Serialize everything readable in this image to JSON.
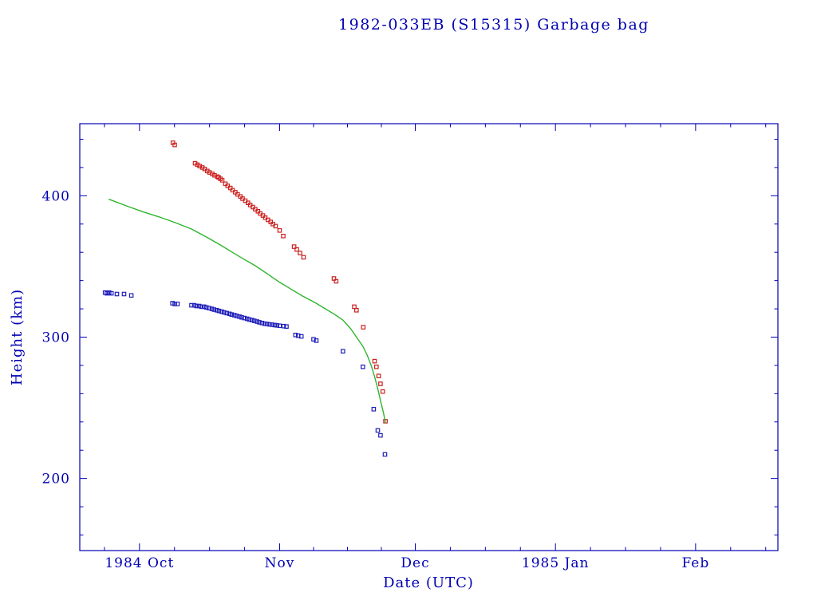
{
  "chart": {
    "text_color": "#0000b3",
    "frame_color": "#0000b3",
    "background": "#ffffff"
  },
  "chart_data": {
    "type": "scatter",
    "title": "1982-033EB (S15315) Garbage bag",
    "xlabel": "Date (UTC)",
    "ylabel": "Height (km)",
    "x_unit": "days since 1984-10-01",
    "xlim": [
      -13.2,
      141.2
    ],
    "ylim": [
      149,
      451
    ],
    "grid": false,
    "legend": "none",
    "x_ticks": [
      {
        "pos": 0,
        "label": "1984 Oct"
      },
      {
        "pos": 31,
        "label": "Nov"
      },
      {
        "pos": 61,
        "label": "Dec"
      },
      {
        "pos": 92,
        "label": "1985 Jan"
      },
      {
        "pos": 123,
        "label": "Feb"
      }
    ],
    "y_ticks": [
      {
        "pos": 200,
        "label": "200"
      },
      {
        "pos": 300,
        "label": "300"
      },
      {
        "pos": 400,
        "label": "400"
      }
    ],
    "y_minor_step": 20,
    "x_minor_divisions": 4,
    "series": [
      {
        "name": "red-squares",
        "type": "scatter",
        "marker": "open-square",
        "color": "#cc2020",
        "points": [
          [
            7.4,
            437.5
          ],
          [
            7.8,
            436
          ],
          [
            12.3,
            423
          ],
          [
            12.8,
            422
          ],
          [
            13.3,
            421
          ],
          [
            13.9,
            420
          ],
          [
            14.4,
            419
          ],
          [
            15.0,
            417.5
          ],
          [
            15.5,
            416.5
          ],
          [
            16.1,
            415.5
          ],
          [
            16.6,
            414.5
          ],
          [
            17.2,
            413.5
          ],
          [
            17.5,
            413
          ],
          [
            17.9,
            412
          ],
          [
            18.3,
            411
          ],
          [
            19.0,
            408.5
          ],
          [
            19.5,
            407
          ],
          [
            20.1,
            405.5
          ],
          [
            20.6,
            404
          ],
          [
            21.2,
            402.5
          ],
          [
            21.7,
            401
          ],
          [
            22.3,
            399.5
          ],
          [
            22.8,
            398
          ],
          [
            23.4,
            396.5
          ],
          [
            24.0,
            395
          ],
          [
            24.5,
            393.5
          ],
          [
            25.1,
            392
          ],
          [
            25.6,
            390.5
          ],
          [
            26.2,
            389
          ],
          [
            26.7,
            387.5
          ],
          [
            27.3,
            386
          ],
          [
            27.8,
            384.5
          ],
          [
            28.4,
            383
          ],
          [
            29.0,
            381.5
          ],
          [
            29.5,
            380
          ],
          [
            30.1,
            378.5
          ],
          [
            31.0,
            375.5
          ],
          [
            31.8,
            371.5
          ],
          [
            34.2,
            364
          ],
          [
            34.8,
            362
          ],
          [
            35.5,
            359.5
          ],
          [
            36.3,
            356.5
          ],
          [
            43.0,
            341.5
          ],
          [
            43.5,
            339.5
          ],
          [
            47.5,
            321.5
          ],
          [
            48.0,
            319
          ],
          [
            49.5,
            307
          ],
          [
            52.0,
            283
          ],
          [
            52.4,
            279
          ],
          [
            52.9,
            272.5
          ],
          [
            53.3,
            267
          ],
          [
            53.8,
            261.5
          ],
          [
            54.4,
            240.5
          ]
        ]
      },
      {
        "name": "blue-squares",
        "type": "scatter",
        "marker": "open-square",
        "color": "#2020bb",
        "points": [
          [
            -7.6,
            331.5
          ],
          [
            -7.2,
            331
          ],
          [
            -6.7,
            331.5
          ],
          [
            -6.2,
            331
          ],
          [
            -5.0,
            330.5
          ],
          [
            -3.4,
            330.5
          ],
          [
            -1.8,
            329.5
          ],
          [
            7.3,
            324
          ],
          [
            7.8,
            323.5
          ],
          [
            8.4,
            323.5
          ],
          [
            11.5,
            322.5
          ],
          [
            12.1,
            322.5
          ],
          [
            12.6,
            322
          ],
          [
            13.2,
            322
          ],
          [
            13.7,
            321.5
          ],
          [
            14.3,
            321.5
          ],
          [
            14.8,
            321
          ],
          [
            15.4,
            320.5
          ],
          [
            16.0,
            320
          ],
          [
            16.5,
            319.5
          ],
          [
            17.1,
            319
          ],
          [
            17.6,
            318.5
          ],
          [
            18.2,
            318
          ],
          [
            18.7,
            317.5
          ],
          [
            19.3,
            317
          ],
          [
            19.9,
            316.5
          ],
          [
            20.4,
            316
          ],
          [
            21.0,
            315.5
          ],
          [
            21.5,
            315
          ],
          [
            22.1,
            314.5
          ],
          [
            22.6,
            314
          ],
          [
            23.2,
            313.5
          ],
          [
            23.8,
            313
          ],
          [
            24.3,
            312.5
          ],
          [
            24.9,
            312
          ],
          [
            25.4,
            311.5
          ],
          [
            26.0,
            311
          ],
          [
            26.5,
            310.5
          ],
          [
            27.1,
            310
          ],
          [
            27.7,
            309.5
          ],
          [
            28.2,
            309.3
          ],
          [
            28.8,
            309
          ],
          [
            29.3,
            308.8
          ],
          [
            29.9,
            308.5
          ],
          [
            30.4,
            308.3
          ],
          [
            31.0,
            308
          ],
          [
            31.9,
            307.8
          ],
          [
            32.5,
            307.5
          ],
          [
            34.5,
            301.5
          ],
          [
            35.1,
            301
          ],
          [
            35.8,
            300.5
          ],
          [
            38.5,
            298.5
          ],
          [
            39.1,
            297.5
          ],
          [
            45.0,
            290
          ],
          [
            49.4,
            279
          ],
          [
            51.8,
            249
          ],
          [
            52.7,
            234
          ],
          [
            53.3,
            230.5
          ],
          [
            54.3,
            217
          ]
        ]
      },
      {
        "name": "green-line",
        "type": "line",
        "marker": "none",
        "color": "#2db52d",
        "points": [
          [
            -6.7,
            397.5
          ],
          [
            -2.6,
            392.5
          ],
          [
            0.9,
            388.5
          ],
          [
            4.4,
            385
          ],
          [
            7.9,
            381
          ],
          [
            11.5,
            376.5
          ],
          [
            15.0,
            370.5
          ],
          [
            18.0,
            365
          ],
          [
            20.3,
            360.5
          ],
          [
            22.9,
            355.5
          ],
          [
            25.6,
            350.5
          ],
          [
            28.2,
            345
          ],
          [
            30.9,
            339
          ],
          [
            33.5,
            334
          ],
          [
            36.1,
            329
          ],
          [
            38.8,
            324.5
          ],
          [
            41.4,
            319.5
          ],
          [
            43.2,
            316
          ],
          [
            45.0,
            312
          ],
          [
            46.7,
            306
          ],
          [
            48.1,
            299.5
          ],
          [
            49.4,
            293.5
          ],
          [
            50.4,
            287
          ],
          [
            51.3,
            279.5
          ],
          [
            52.0,
            272
          ],
          [
            52.7,
            263.5
          ],
          [
            53.4,
            254
          ],
          [
            54.0,
            246
          ],
          [
            54.4,
            239.5
          ]
        ]
      }
    ]
  }
}
